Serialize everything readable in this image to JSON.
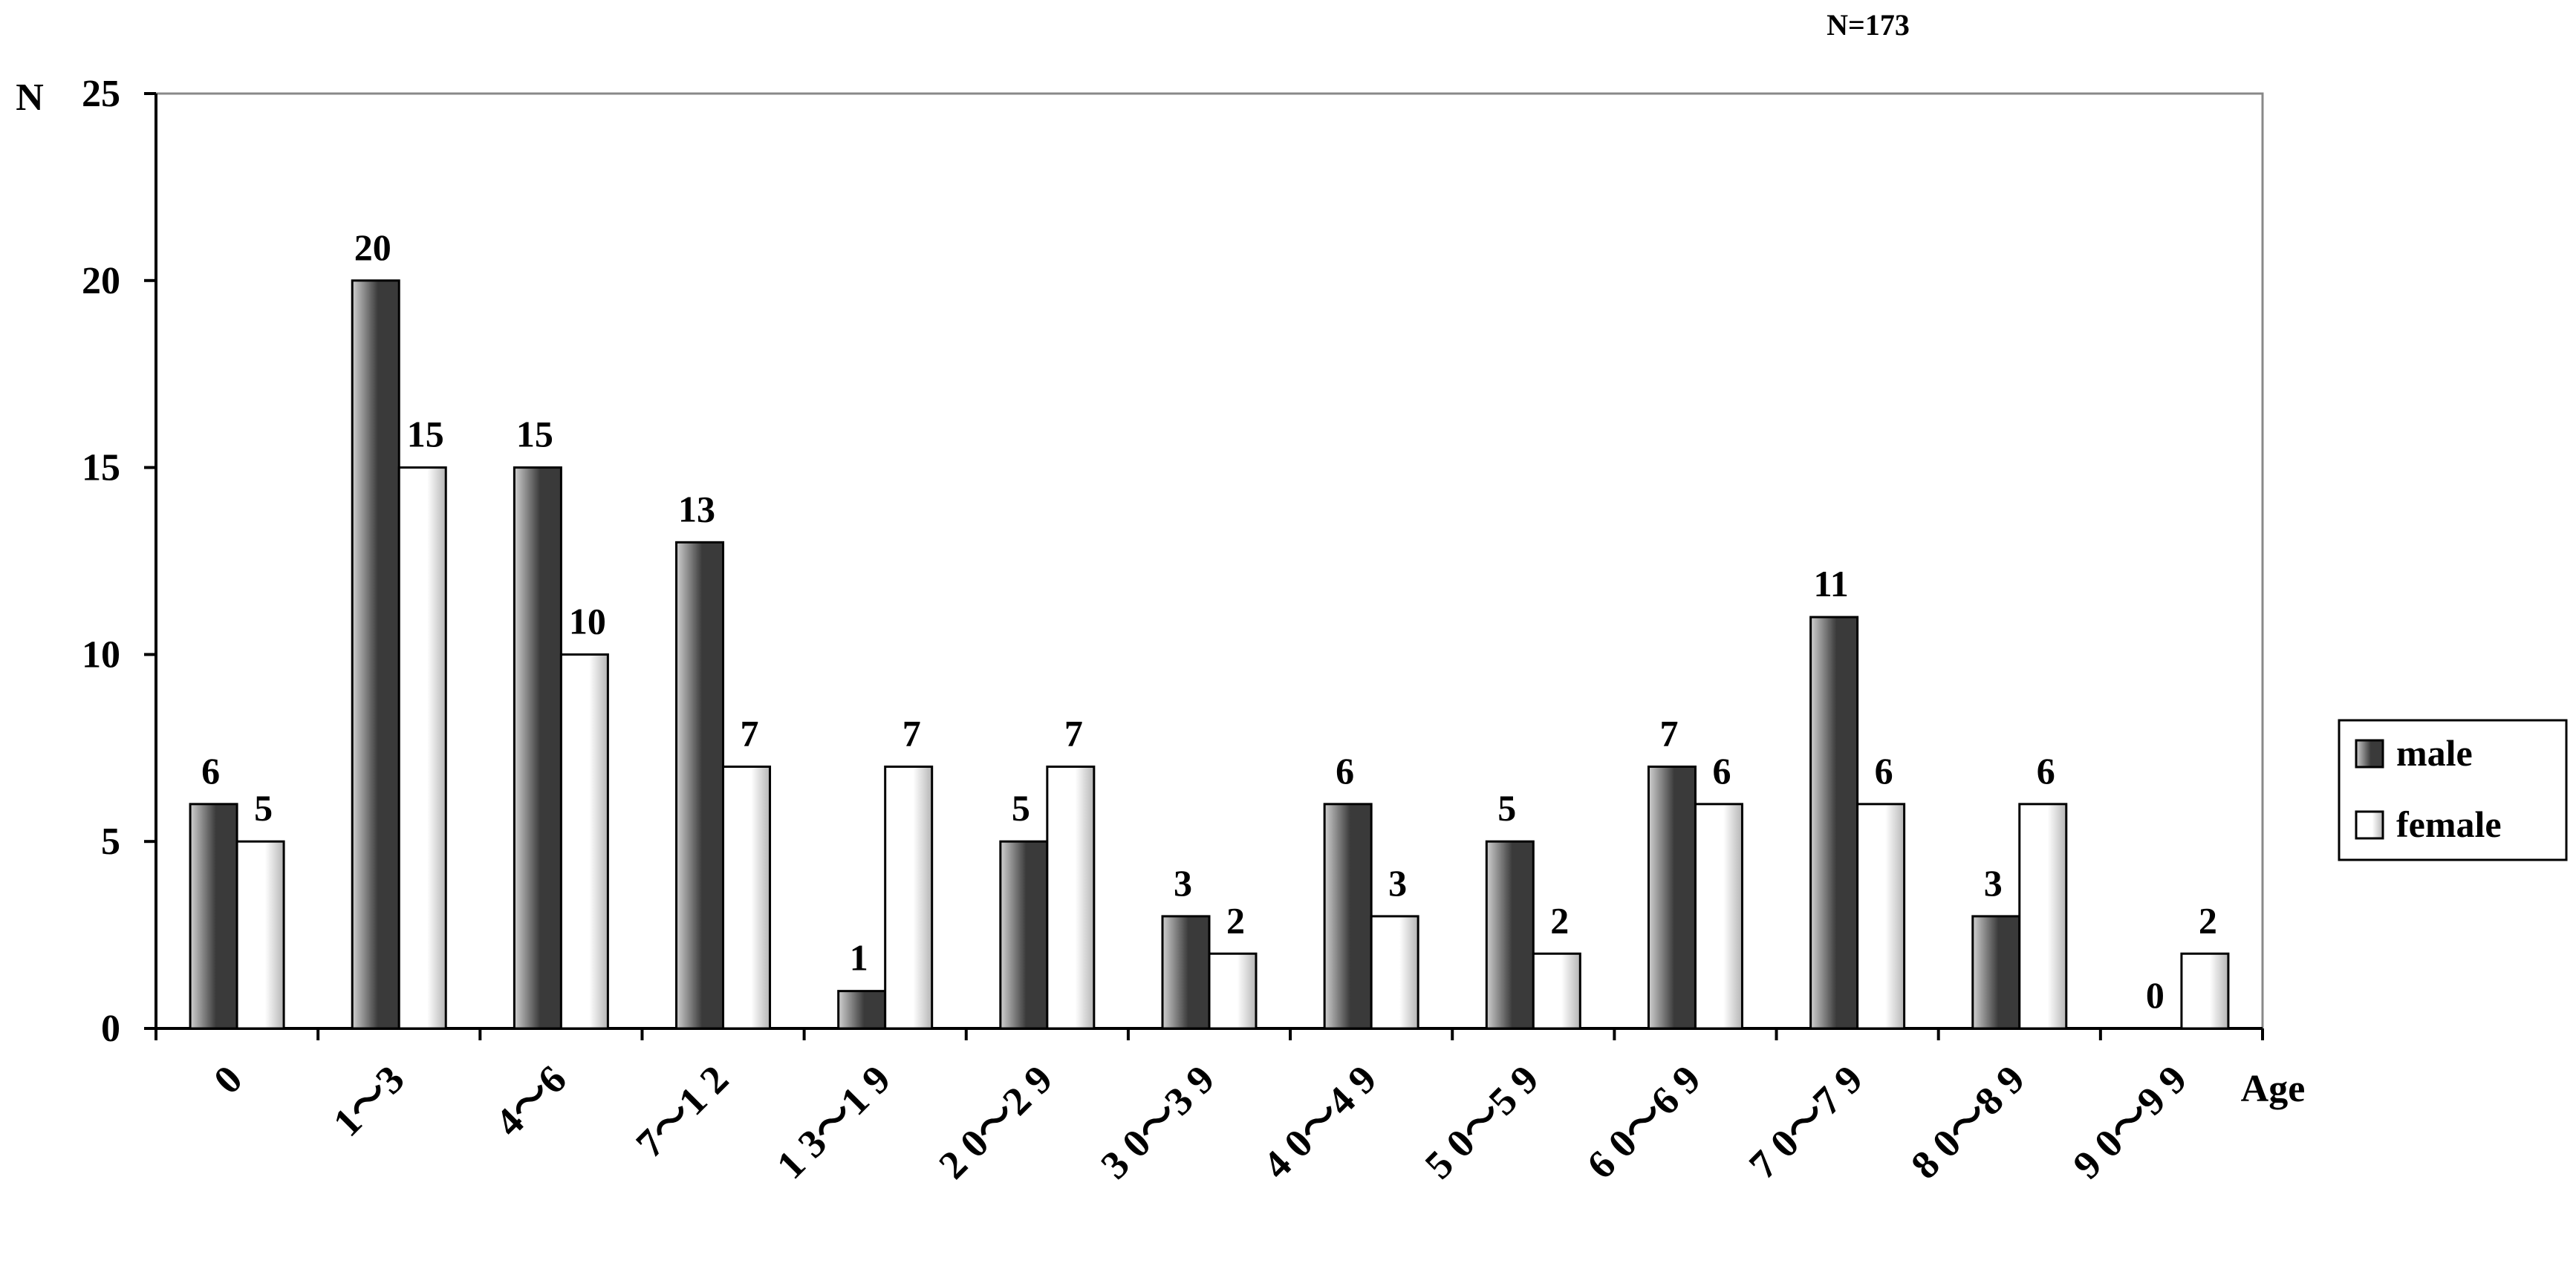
{
  "chart_data": {
    "type": "bar",
    "title": "",
    "note": "N=173",
    "ylabel": "N",
    "xlabel": "Age",
    "ylim": [
      0,
      25
    ],
    "yticks": [
      0,
      5,
      10,
      15,
      20,
      25
    ],
    "grid": false,
    "legend_position": "right",
    "categories": [
      "0",
      "1～3",
      "4～6",
      "7～1 2",
      "1 3～1 9",
      "2 0～2 9",
      "3 0～3 9",
      "4 0～4 9",
      "5 0～5 9",
      "6 0～6 9",
      "7 0～7 9",
      "8 0～8 9",
      "9 0～9 9"
    ],
    "series": [
      {
        "name": "male",
        "values": [
          6,
          20,
          15,
          13,
          1,
          5,
          3,
          6,
          5,
          7,
          11,
          3,
          0
        ]
      },
      {
        "name": "female",
        "values": [
          5,
          15,
          10,
          7,
          7,
          7,
          2,
          3,
          2,
          6,
          6,
          6,
          2
        ]
      }
    ]
  },
  "colors": {
    "male_dark": "#3a3a3a",
    "male_light": "#d0d0d0",
    "female_light": "#ffffff",
    "female_dark": "#b5b5b5",
    "axis": "#000000"
  }
}
